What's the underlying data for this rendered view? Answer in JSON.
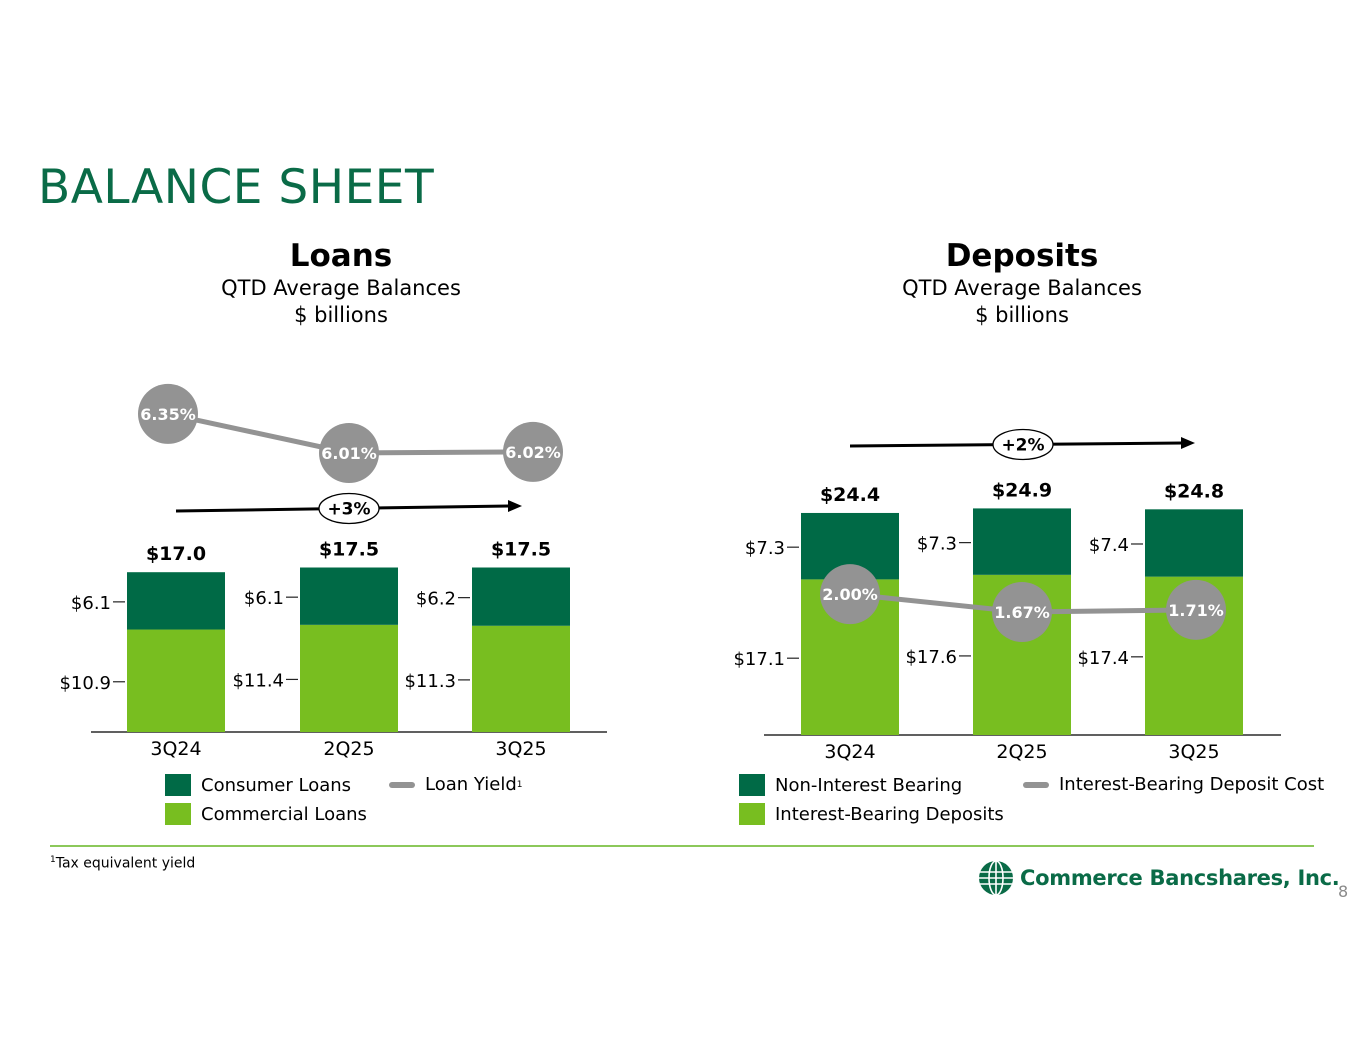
{
  "title": "BALANCE SHEET",
  "colors": {
    "accent": "#0a6b47",
    "dark_green": "#006a46",
    "light_green": "#78be20",
    "gray": "#939393",
    "rule": "#8cc85a"
  },
  "loans": {
    "heading": "Loans",
    "subtitle1": "QTD Average Balances",
    "subtitle2": "$ billions",
    "growth_label": "+3%",
    "legend": {
      "dark": "Consumer Loans",
      "light": "Commercial Loans",
      "line": "Loan Yield",
      "line_sup": "1"
    }
  },
  "deposits": {
    "heading": "Deposits",
    "subtitle1": "QTD Average Balances",
    "subtitle2": "$ billions",
    "growth_label": "+2%",
    "legend": {
      "dark": "Non-Interest Bearing",
      "light": "Interest-Bearing Deposits",
      "line": "Interest-Bearing Deposit Cost"
    }
  },
  "chart_data": [
    {
      "type": "bar",
      "stacked": true,
      "categories": [
        "3Q24",
        "2Q25",
        "3Q25"
      ],
      "series": [
        {
          "name": "Commercial Loans",
          "values": [
            10.9,
            11.4,
            11.3
          ],
          "labels": [
            "$10.9",
            "$11.4",
            "$11.3"
          ]
        },
        {
          "name": "Consumer Loans",
          "values": [
            6.1,
            6.1,
            6.2
          ],
          "labels": [
            "$6.1",
            "$6.1",
            "$6.2"
          ]
        }
      ],
      "totals": [
        "$17.0",
        "$17.5",
        "$17.5"
      ],
      "line": {
        "name": "Loan Yield",
        "values": [
          6.35,
          6.01,
          6.02
        ],
        "labels": [
          "6.35%",
          "6.01%",
          "6.02%"
        ]
      }
    },
    {
      "type": "bar",
      "stacked": true,
      "categories": [
        "3Q24",
        "2Q25",
        "3Q25"
      ],
      "series": [
        {
          "name": "Interest-Bearing Deposits",
          "values": [
            17.1,
            17.6,
            17.4
          ],
          "labels": [
            "$17.1",
            "$17.6",
            "$17.4"
          ]
        },
        {
          "name": "Non-Interest Bearing",
          "values": [
            7.3,
            7.3,
            7.4
          ],
          "labels": [
            "$7.3",
            "$7.3",
            "$7.4"
          ]
        }
      ],
      "totals": [
        "$24.4",
        "$24.9",
        "$24.8"
      ],
      "line": {
        "name": "Interest-Bearing Deposit Cost",
        "values": [
          2.0,
          1.67,
          1.71
        ],
        "labels": [
          "2.00%",
          "1.67%",
          "1.71%"
        ]
      }
    }
  ],
  "footnote": {
    "sup": "1",
    "text": "Tax equivalent yield"
  },
  "logo_text": "Commerce Bancshares, Inc.",
  "page_number": "8"
}
